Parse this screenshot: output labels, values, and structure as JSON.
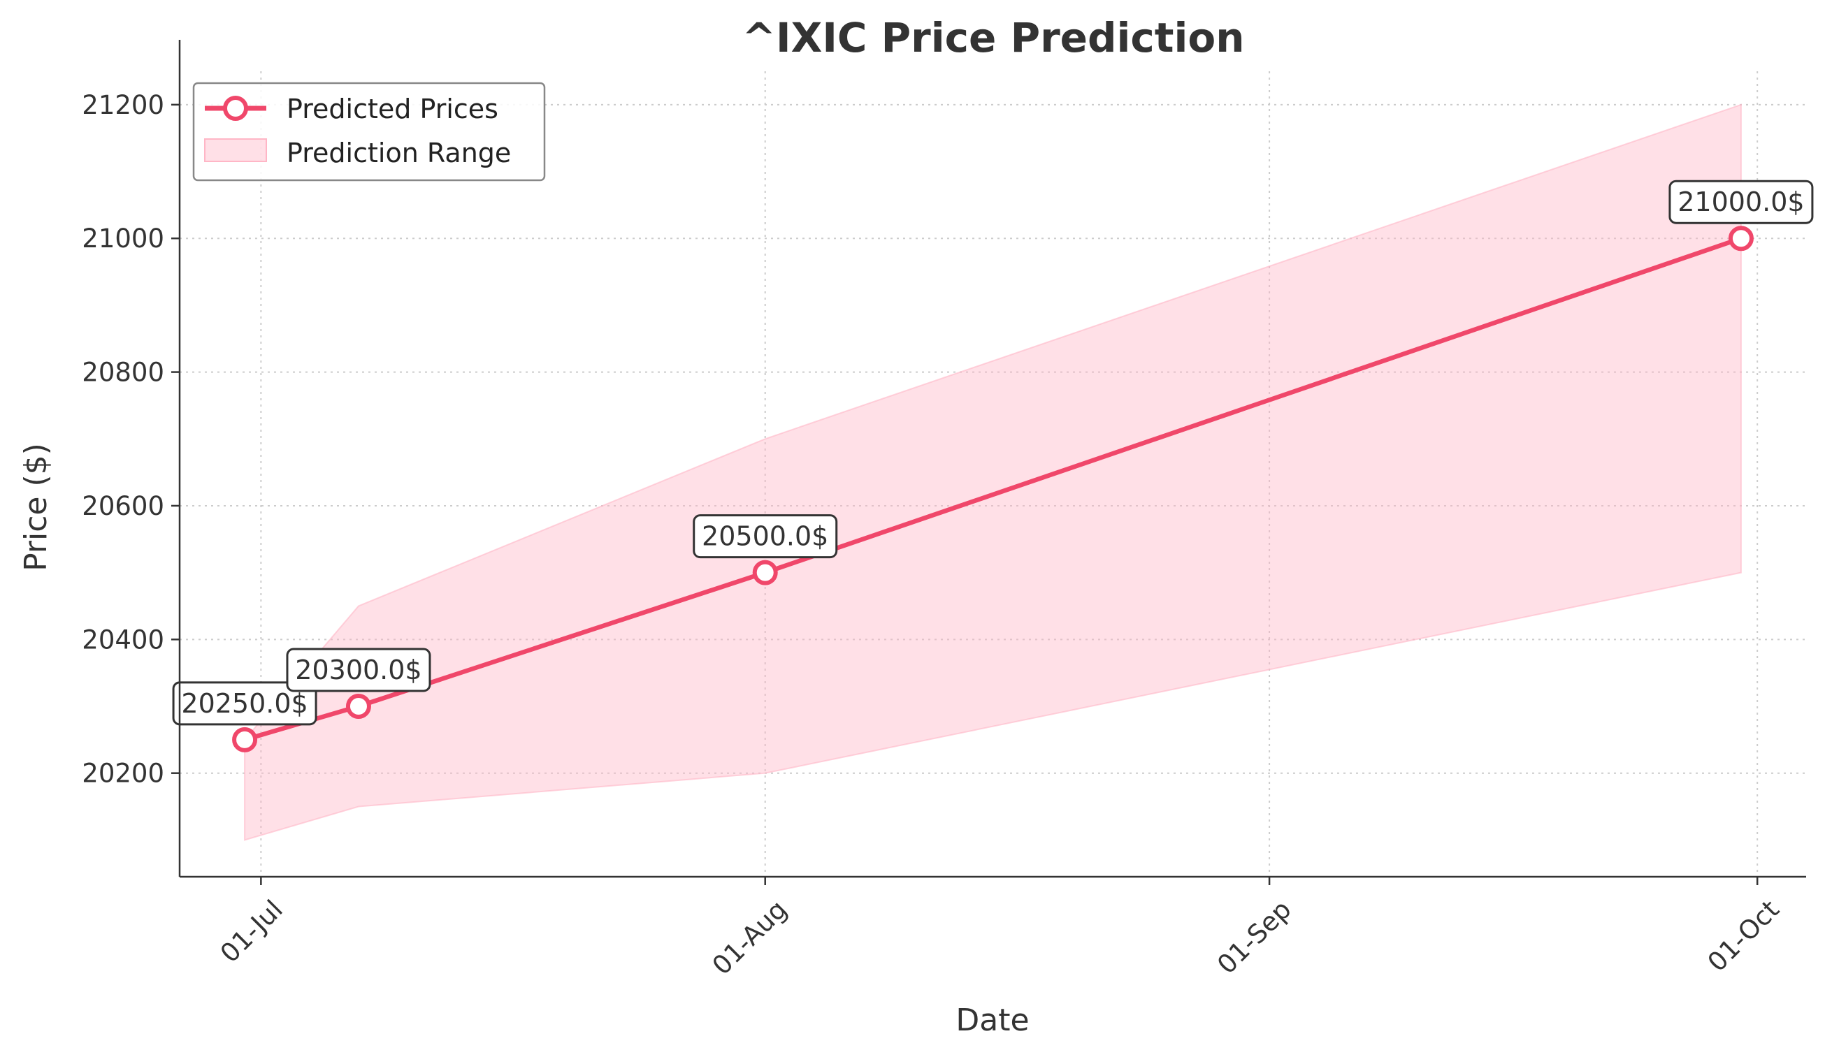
{
  "chart_data": {
    "type": "line",
    "title": "^IXIC Price Prediction",
    "xlabel": "Date",
    "ylabel": "Price ($)",
    "x": [
      "2025-06-30",
      "2025-07-07",
      "2025-08-01",
      "2025-09-30"
    ],
    "series": [
      {
        "name": "Predicted Prices",
        "values": [
          20250,
          20300,
          20500,
          21000
        ],
        "color": "#f0476a"
      }
    ],
    "range": {
      "name": "Prediction Range",
      "lower": [
        20100,
        20150,
        20200,
        20500
      ],
      "upper": [
        20250,
        20450,
        20700,
        21200
      ],
      "color": "#ffb6c6"
    },
    "annotations": [
      "20250.0$",
      "20300.0$",
      "20500.0$",
      "21000.0$"
    ],
    "x_ticks": [
      {
        "date": "2025-07-01",
        "label": "01-Jul"
      },
      {
        "date": "2025-08-01",
        "label": "01-Aug"
      },
      {
        "date": "2025-09-01",
        "label": "01-Sep"
      },
      {
        "date": "2025-10-01",
        "label": "01-Oct"
      }
    ],
    "y_ticks": [
      20200,
      20400,
      20600,
      20800,
      21000,
      21200
    ],
    "xlim": [
      "2025-06-26",
      "2025-10-04"
    ],
    "ylim": [
      20045,
      21250
    ],
    "grid": true,
    "legend_position": "top-left"
  }
}
